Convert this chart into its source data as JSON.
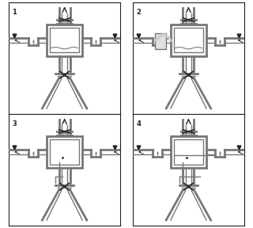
{
  "bg_color": "#ffffff",
  "line_color": "#777777",
  "dark_color": "#222222",
  "fill_color": "#ffffff",
  "gray_fill": "#d8d8d8",
  "foam_fill": "#e0e0e0",
  "labels": [
    "1",
    "2",
    "3",
    "4"
  ],
  "lw_outer": 2.0,
  "lw_inner": 1.0,
  "lw_border": 0.8
}
